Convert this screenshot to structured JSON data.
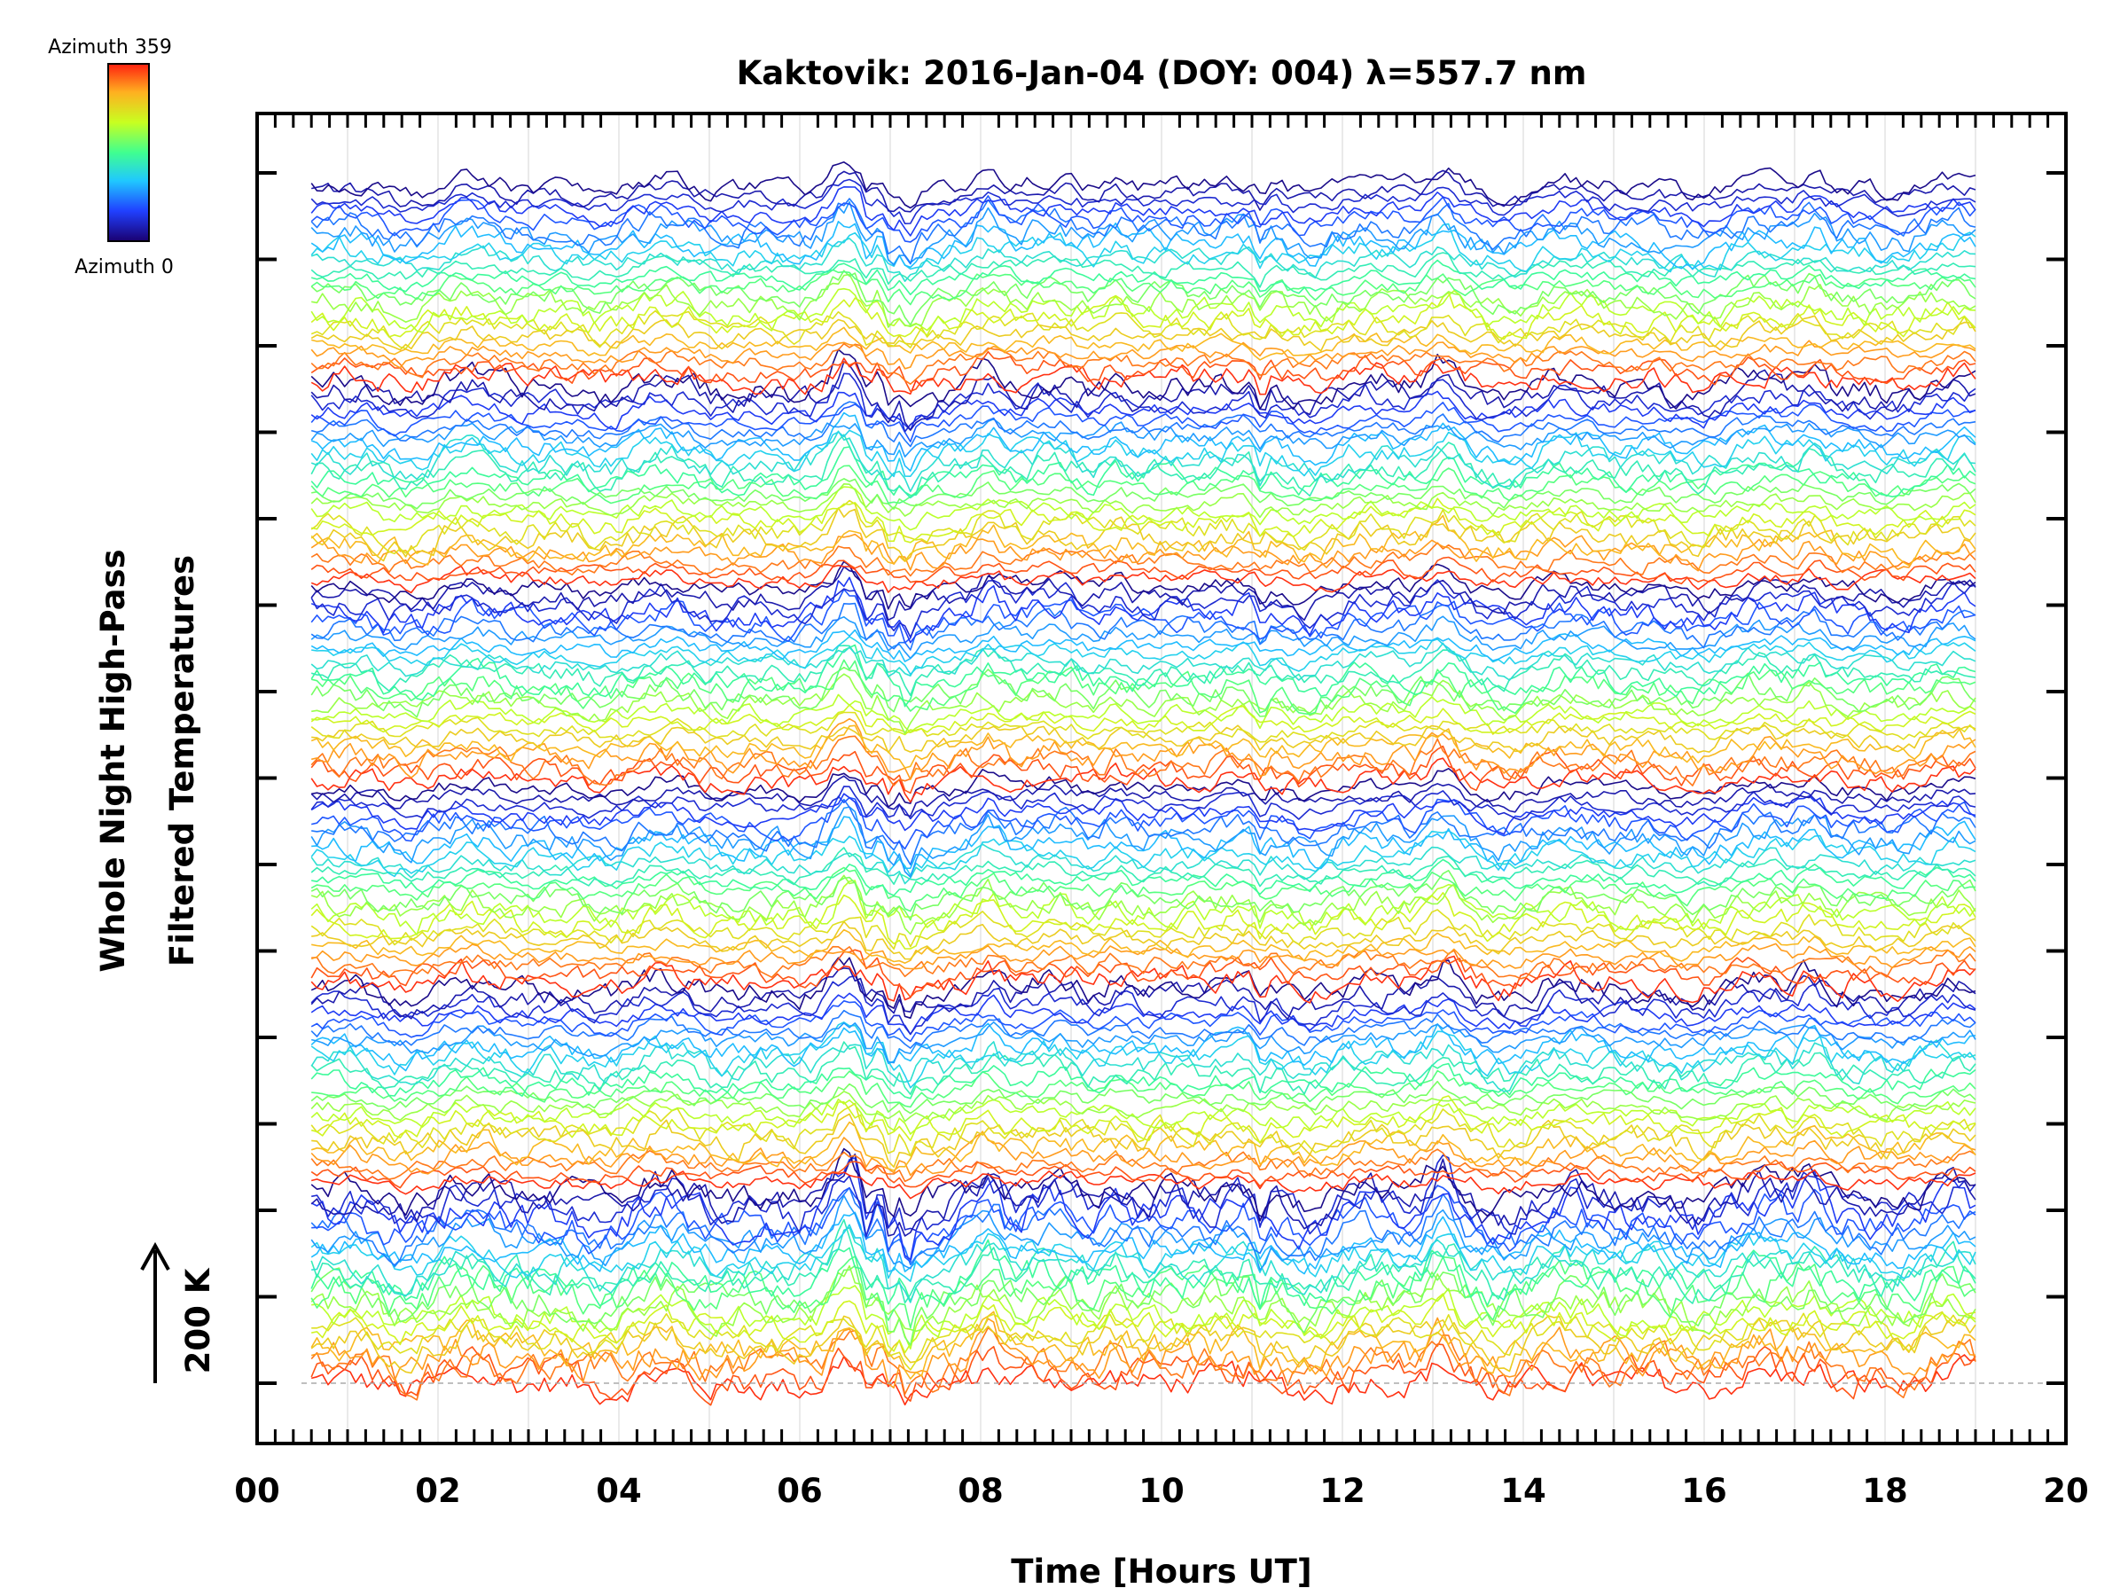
{
  "chart_data": {
    "type": "line",
    "title": "Kaktovik: 2016-Jan-04 (DOY: 004) λ=557.7 nm",
    "xlabel": "Time [Hours UT]",
    "ylabel_line1": "Whole Night High-Pass",
    "ylabel_line2": "Filtered Temperatures",
    "xlim": [
      0,
      20
    ],
    "x_ticks": [
      "00",
      "02",
      "04",
      "06",
      "08",
      "10",
      "12",
      "14",
      "16",
      "18",
      "20"
    ],
    "data_time_range": [
      0.6,
      19.0
    ],
    "scale_bar_label": "200 K",
    "colorbar": {
      "top_label": "Azimuth 359",
      "bottom_label": "Azimuth 0",
      "colormap": [
        "#1a0070",
        "#2040ff",
        "#20c8ff",
        "#40ff90",
        "#c8ff20",
        "#ffb020",
        "#ff2010"
      ]
    },
    "stacked_groups": 6,
    "traces_per_group": 24,
    "features": [
      {
        "time": 6.5,
        "type": "peak"
      },
      {
        "time": 6.75,
        "type": "dip"
      },
      {
        "time": 7.0,
        "type": "dip"
      },
      {
        "time": 7.2,
        "type": "dip"
      },
      {
        "time": 8.1,
        "type": "peak"
      },
      {
        "time": 9.5,
        "type": "peak"
      },
      {
        "time": 11.1,
        "type": "dip"
      },
      {
        "time": 13.1,
        "type": "peak"
      },
      {
        "time": 17.2,
        "type": "peak"
      }
    ]
  }
}
